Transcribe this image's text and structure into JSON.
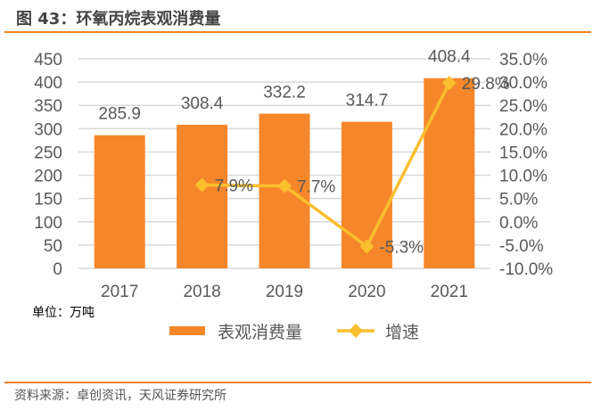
{
  "title": "图 43：环氧丙烷表观消费量",
  "unit": "单位：万吨",
  "source": "资料来源：卓创资讯，天风证券研究所",
  "colors": {
    "bar": "#F5862A",
    "line": "#FBBF2E",
    "rule": "#F08122"
  },
  "chart_data": {
    "type": "bar+line",
    "categories": [
      "2017",
      "2018",
      "2019",
      "2020",
      "2021"
    ],
    "series": [
      {
        "name": "表观消费量",
        "type": "bar",
        "axis": "left",
        "values": [
          285.9,
          308.4,
          332.2,
          314.7,
          408.4
        ],
        "labels": [
          "285.9",
          "308.4",
          "332.2",
          "314.7",
          "408.4"
        ]
      },
      {
        "name": "增速",
        "type": "line",
        "axis": "right",
        "values": [
          null,
          7.9,
          7.7,
          -5.3,
          29.8
        ],
        "labels": [
          "",
          "7.9%",
          "7.7%",
          "-5.3%",
          "29.8%"
        ]
      }
    ],
    "left_axis": {
      "range": [
        0,
        450
      ],
      "ticks": [
        "0",
        "50",
        "100",
        "150",
        "200",
        "250",
        "300",
        "350",
        "400",
        "450"
      ]
    },
    "right_axis": {
      "range": [
        -10,
        35
      ],
      "ticks": [
        "-10.0%",
        "-5.0%",
        "0.0%",
        "5.0%",
        "10.0%",
        "15.0%",
        "20.0%",
        "25.0%",
        "30.0%",
        "35.0%"
      ]
    },
    "grid": true,
    "legend": "bottom"
  }
}
